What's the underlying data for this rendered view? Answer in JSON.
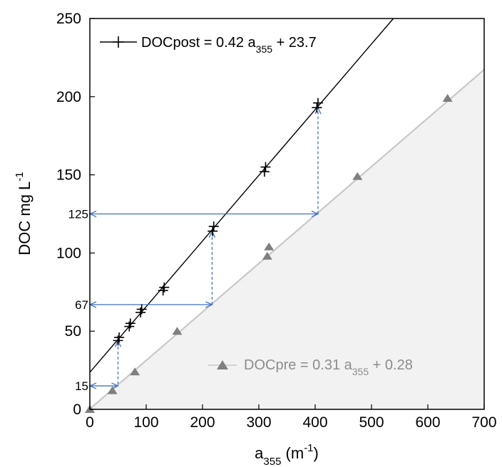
{
  "chart_data": {
    "type": "scatter",
    "xlabel": {
      "base": "a",
      "sub": "355",
      "rest": " (m",
      "sup": "-1",
      "close": ")"
    },
    "ylabel": {
      "base": "DOC mg L",
      "sup": "-1"
    },
    "xlim": [
      0,
      700
    ],
    "ylim": [
      0,
      250
    ],
    "x_ticks": [
      "0",
      "100",
      "200",
      "300",
      "400",
      "500",
      "600",
      "700"
    ],
    "y_ticks": [
      "0",
      "50",
      "100",
      "150",
      "200",
      "250"
    ],
    "y_ref_ticks": [
      "15",
      "67",
      "125"
    ],
    "grid": false,
    "series": [
      {
        "name_parts": {
          "pre": "DOCpost = 0.42 a",
          "sub": "355",
          "post": " + 23.7"
        },
        "marker": "plus",
        "color": "#000000",
        "x": [
          50,
          52,
          70,
          72,
          90,
          92,
          130,
          132,
          218,
          220,
          310,
          312,
          403,
          405
        ],
        "y": [
          44,
          46,
          53,
          55,
          62,
          64,
          76,
          78,
          114,
          117,
          152,
          155,
          193,
          196
        ],
        "fit": {
          "slope": 0.42,
          "intercept": 23.7
        }
      },
      {
        "name_parts": {
          "pre": "DOCpre = 0.31 a",
          "sub": "355",
          "post": " + 0.28"
        },
        "marker": "triangle",
        "color": "#7f7f7f",
        "x": [
          0,
          40,
          80,
          155,
          315,
          318,
          475,
          635
        ],
        "y": [
          0,
          12,
          24,
          50,
          98,
          104,
          149,
          199
        ],
        "fit": {
          "slope": 0.31,
          "intercept": 0.28
        }
      }
    ],
    "annotations": [
      {
        "x": 50,
        "y_from": 16,
        "y_to": 44
      },
      {
        "x": 217,
        "y_from": 67,
        "y_to": 114
      },
      {
        "x": 405,
        "y_from": 125,
        "y_to": 193
      }
    ],
    "reference_lines": [
      {
        "y": 15,
        "x_to": 50
      },
      {
        "y": 67,
        "x_to": 217
      },
      {
        "y": 125,
        "x_to": 405
      }
    ],
    "colors": {
      "annotation": "#4472c4",
      "shade": "#f2f2f2",
      "pre_line": "#c8c8c8"
    }
  }
}
